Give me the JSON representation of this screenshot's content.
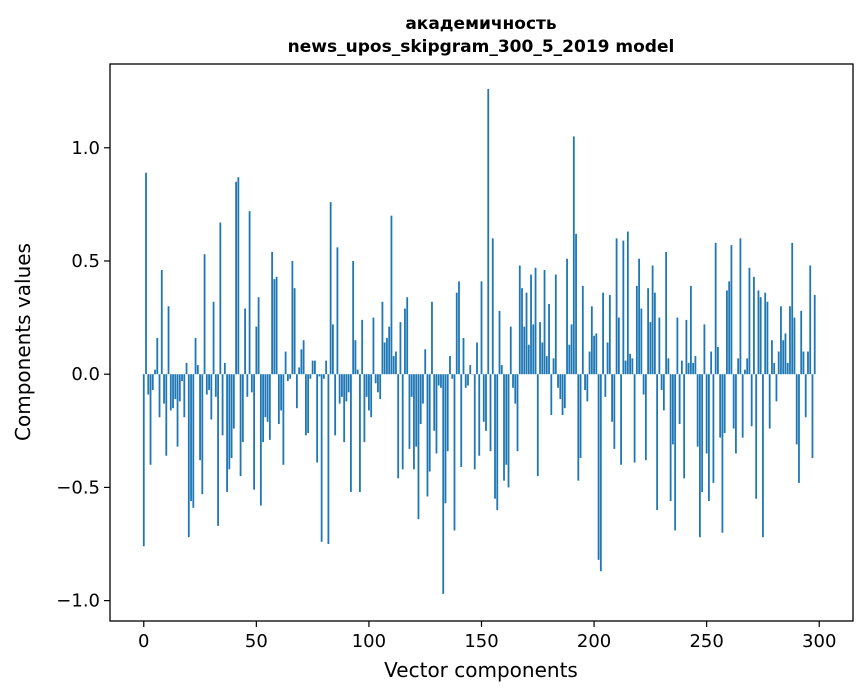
{
  "chart_data": {
    "type": "bar",
    "title": "академичность",
    "subtitle": "news_upos_skipgram_300_5_2019 model",
    "xlabel": "Vector components",
    "ylabel": "Components values",
    "xlim": [
      -15,
      315
    ],
    "ylim": [
      -1.09,
      1.37
    ],
    "xticks": [
      0,
      50,
      100,
      150,
      200,
      250,
      300
    ],
    "xtick_labels": [
      "0",
      "50",
      "100",
      "150",
      "200",
      "250",
      "300"
    ],
    "yticks": [
      -1.0,
      -0.5,
      0.0,
      0.5,
      1.0
    ],
    "ytick_labels": [
      "−1.0",
      "−0.5",
      "0.0",
      "0.5",
      "1.0"
    ],
    "bar_color": "#1f77b4",
    "series": [
      {
        "name": "академичность",
        "values": [
          -0.76,
          0.89,
          -0.09,
          -0.4,
          -0.07,
          0.02,
          0.16,
          -0.19,
          0.46,
          -0.13,
          -0.36,
          0.3,
          -0.16,
          -0.15,
          -0.11,
          -0.32,
          -0.12,
          -0.03,
          -0.19,
          0.05,
          -0.72,
          -0.56,
          -0.59,
          0.16,
          0.04,
          -0.38,
          -0.53,
          0.53,
          -0.09,
          -0.07,
          -0.2,
          0.32,
          -0.1,
          -0.67,
          0.67,
          -0.27,
          0.05,
          -0.52,
          -0.42,
          -0.37,
          -0.24,
          0.85,
          0.87,
          -0.45,
          -0.3,
          0.29,
          -0.1,
          0.72,
          -0.08,
          -0.51,
          0.21,
          0.34,
          -0.58,
          -0.3,
          -0.19,
          -0.21,
          -0.29,
          0.54,
          0.42,
          0.43,
          -0.22,
          -0.16,
          -0.4,
          0.1,
          -0.03,
          -0.02,
          0.5,
          0.38,
          -0.15,
          0.03,
          0.11,
          0.15,
          -0.27,
          -0.26,
          -0.02,
          0.06,
          0.06,
          -0.39,
          -0.01,
          -0.74,
          -0.02,
          0.06,
          -0.75,
          0.76,
          0.22,
          -0.27,
          0.56,
          -0.13,
          -0.1,
          -0.3,
          -0.12,
          -0.08,
          -0.52,
          0.5,
          0.15,
          0.02,
          -0.52,
          0.24,
          -0.3,
          -0.1,
          -0.16,
          -0.19,
          0.25,
          -0.04,
          -0.08,
          -0.11,
          0.32,
          0.14,
          0.16,
          0.21,
          0.7,
          0.08,
          0.1,
          -0.46,
          0.23,
          -0.42,
          0.29,
          0.34,
          -0.33,
          -0.1,
          -0.42,
          -0.32,
          -0.64,
          -0.22,
          -0.13,
          0.11,
          -0.54,
          -0.43,
          0.32,
          -0.25,
          -0.35,
          -0.05,
          -0.06,
          -0.97,
          -0.57,
          -0.34,
          0.08,
          -0.02,
          -0.69,
          0.36,
          0.41,
          -0.41,
          0.16,
          -0.06,
          -0.05,
          0.04,
          0.0,
          -0.42,
          0.14,
          -0.36,
          0.41,
          -0.21,
          -0.25,
          1.26,
          -0.34,
          0.6,
          -0.55,
          -0.6,
          0.28,
          0.04,
          -0.47,
          -0.4,
          -0.5,
          0.21,
          -0.06,
          -0.13,
          -0.34,
          0.48,
          0.38,
          0.21,
          0.36,
          0.13,
          0.44,
          0.22,
          0.47,
          -0.45,
          0.23,
          0.14,
          0.46,
          0.08,
          0.31,
          -0.18,
          0.07,
          0.44,
          -0.06,
          -0.11,
          -0.18,
          -0.15,
          0.51,
          0.13,
          0.22,
          1.05,
          0.62,
          -0.47,
          -0.37,
          0.39,
          -0.07,
          -0.12,
          0.1,
          0.3,
          0.17,
          0.18,
          -0.82,
          -0.87,
          0.36,
          -0.1,
          0.14,
          0.35,
          -0.21,
          -0.33,
          0.6,
          0.25,
          -0.4,
          0.59,
          0.06,
          0.63,
          0.09,
          0.07,
          -0.39,
          0.39,
          0.51,
          0.29,
          -0.09,
          -0.38,
          0.38,
          0.23,
          0.48,
          0.36,
          -0.6,
          0.25,
          -0.07,
          -0.16,
          0.54,
          0.07,
          -0.56,
          -0.31,
          -0.69,
          0.25,
          -0.22,
          0.06,
          -0.46,
          0.24,
          0.05,
          0.39,
          0.05,
          0.08,
          -0.32,
          -0.72,
          -0.52,
          0.22,
          -0.35,
          -0.56,
          0.1,
          -0.48,
          0.58,
          0.12,
          -0.28,
          -0.7,
          -0.26,
          0.37,
          0.41,
          0.57,
          -0.24,
          -0.35,
          0.07,
          0.6,
          -0.28,
          0.02,
          0.07,
          0.47,
          -0.23,
          0.43,
          -0.55,
          0.37,
          0.34,
          -0.72,
          0.36,
          0.32,
          -0.24,
          0.15,
          0.05,
          -0.12,
          0.1,
          0.3,
          0.15,
          0.18,
          0.05,
          0.3,
          0.58,
          0.25,
          -0.31,
          -0.48,
          0.28,
          0.1,
          -0.19,
          0.1,
          0.48,
          -0.37,
          0.35
        ]
      }
    ]
  }
}
